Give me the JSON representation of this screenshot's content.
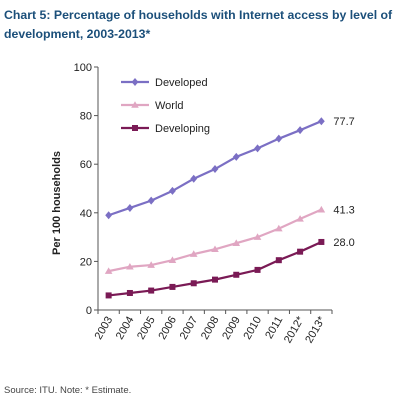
{
  "chart_data": {
    "type": "line",
    "title": "Chart 5: Percentage of households with Internet access by level of development, 2003-2013*",
    "xlabel": "",
    "ylabel": "Per 100 households",
    "x": [
      "2003",
      "2004",
      "2005",
      "2006",
      "2007",
      "2008",
      "2009",
      "2010",
      "2011",
      "2012*",
      "2013*"
    ],
    "ylim": [
      0,
      100
    ],
    "yticks": [
      0,
      20,
      40,
      60,
      80,
      100
    ],
    "grid": false,
    "legend_position": "top-left",
    "series": [
      {
        "name": "Developed",
        "color": "#7b6fc4",
        "marker": "diamond",
        "values": [
          39,
          42,
          45,
          49,
          54,
          58,
          63,
          66.5,
          70.5,
          74,
          77.7
        ],
        "end_label": "77.7"
      },
      {
        "name": "World",
        "color": "#e0a6c2",
        "marker": "triangle",
        "values": [
          16,
          17.8,
          18.5,
          20.5,
          23,
          25,
          27.5,
          30,
          33.5,
          37.5,
          41.3
        ],
        "end_label": "41.3"
      },
      {
        "name": "Developing",
        "color": "#7a1a55",
        "marker": "square",
        "values": [
          6,
          7,
          8,
          9.5,
          11,
          12.5,
          14.5,
          16.5,
          20.5,
          24,
          28.0
        ],
        "end_label": "28.0"
      }
    ]
  },
  "source_note": "Source: ITU. Note:  * Estimate."
}
